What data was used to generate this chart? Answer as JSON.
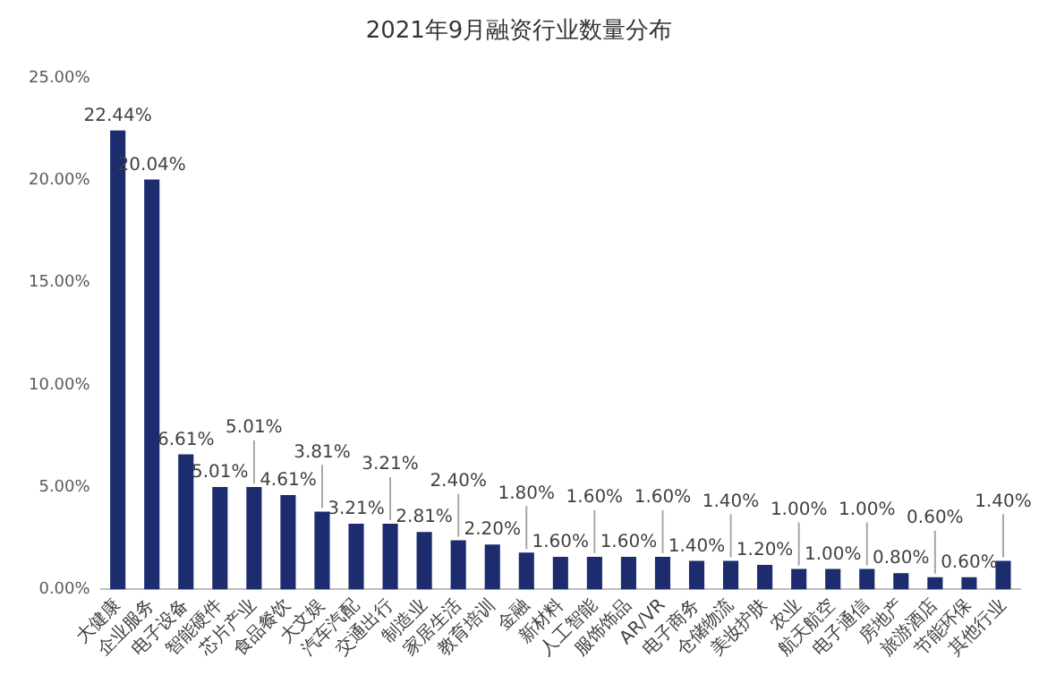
{
  "chart_data": {
    "type": "bar",
    "title": "2021年9月融资行业数量分布",
    "categories": [
      "大健康",
      "企业服务",
      "电子设备",
      "智能硬件",
      "芯片产业",
      "食品餐饮",
      "大文娱",
      "汽车汽配",
      "交通出行",
      "制造业",
      "家居生活",
      "教育培训",
      "金融",
      "新材料",
      "人工智能",
      "服饰饰品",
      "AR/VR",
      "电子商务",
      "仓储物流",
      "美妆护肤",
      "农业",
      "航天航空",
      "电子通信",
      "房地产",
      "旅游酒店",
      "节能环保",
      "其他行业"
    ],
    "values": [
      22.44,
      20.04,
      6.61,
      5.01,
      5.01,
      4.61,
      3.81,
      3.21,
      3.21,
      2.81,
      2.4,
      2.2,
      1.8,
      1.6,
      1.6,
      1.6,
      1.6,
      1.4,
      1.4,
      1.2,
      1.0,
      1.0,
      1.0,
      0.8,
      0.6,
      0.6,
      1.4
    ],
    "value_labels": [
      "22.44%",
      "20.04%",
      "6.61%",
      "5.01%",
      "5.01%",
      "4.61%",
      "3.81%",
      "3.21%",
      "3.21%",
      "2.81%",
      "2.40%",
      "2.20%",
      "1.80%",
      "1.60%",
      "1.60%",
      "1.60%",
      "1.60%",
      "1.40%",
      "1.40%",
      "1.20%",
      "1.00%",
      "1.00%",
      "1.00%",
      "0.80%",
      "0.60%",
      "0.60%",
      "1.40%"
    ],
    "color": "#1c2c6e",
    "ylim": [
      0,
      25
    ],
    "yticks": [
      {
        "value": 0,
        "label": "0.00%"
      },
      {
        "value": 5,
        "label": "5.00%"
      },
      {
        "value": 10,
        "label": "10.00%"
      },
      {
        "value": 15,
        "label": "15.00%"
      },
      {
        "value": 20,
        "label": "20.00%"
      },
      {
        "value": 25,
        "label": "25.00%"
      }
    ],
    "grid": false,
    "legend": false
  }
}
